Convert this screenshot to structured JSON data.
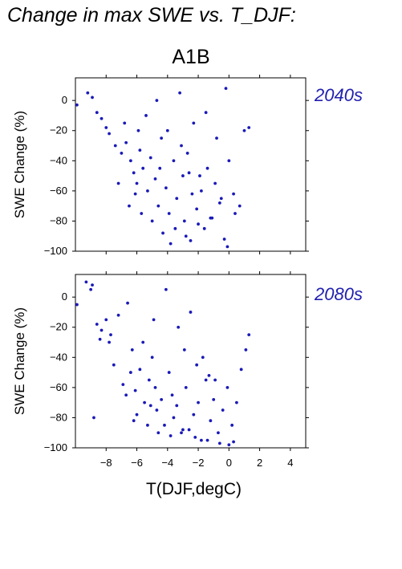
{
  "page": {
    "title": "Change in max SWE vs. T_DJF:",
    "scenario": "A1B"
  },
  "colors": {
    "points": "#1a1ab8",
    "period_label": "#2020b0",
    "axes": "#000000"
  },
  "chart_data": [
    {
      "type": "scatter",
      "period_label": "2040s",
      "ylabel": "SWE Change (%)",
      "xlabel": "",
      "xlim": [
        -10,
        5
      ],
      "ylim": [
        -100,
        15
      ],
      "xticks": [
        -8,
        -6,
        -4,
        -2,
        0,
        2,
        4
      ],
      "yticks": [
        0,
        -20,
        -40,
        -60,
        -80,
        -100
      ],
      "ytick_labels": [
        "0",
        "−20",
        "−40",
        "−60",
        "−80",
        "−100"
      ],
      "x": [
        -9.9,
        -9.2,
        -8.9,
        -8.6,
        -8.3,
        -8.0,
        -7.8,
        -7.4,
        -7.0,
        -6.7,
        -6.4,
        -6.2,
        -6.0,
        -5.8,
        -5.6,
        -5.3,
        -5.1,
        -4.8,
        -4.6,
        -4.4,
        -4.1,
        -3.9,
        -3.6,
        -3.4,
        -3.1,
        -2.9,
        -2.6,
        -2.4,
        -2.1,
        -1.9,
        -1.6,
        -1.4,
        -1.1,
        -0.9,
        -0.6,
        -0.3,
        0.0,
        0.3,
        0.7,
        1.0,
        1.3,
        -7.2,
        -6.5,
        -5.7,
        -5.0,
        -4.3,
        -3.5,
        -2.8,
        -2.0,
        -1.2,
        -0.5,
        -6.8,
        -5.4,
        -4.0,
        -2.7,
        -1.5,
        -0.2,
        -3.2,
        -2.3,
        -4.7,
        -5.9,
        -3.8,
        -1.8,
        -0.8,
        -2.5,
        -3.0,
        -4.5,
        -0.1,
        0.4,
        -6.1
      ],
      "y": [
        -3,
        5,
        2,
        -8,
        -12,
        -18,
        -22,
        -30,
        -35,
        -28,
        -40,
        -48,
        -55,
        -33,
        -45,
        -60,
        -38,
        -52,
        -70,
        -25,
        -58,
        -75,
        -40,
        -65,
        -30,
        -80,
        -48,
        -62,
        -72,
        -50,
        -85,
        -45,
        -78,
        -55,
        -68,
        -92,
        -40,
        -62,
        -70,
        -20,
        -18,
        -55,
        -70,
        -75,
        -80,
        -88,
        -85,
        -90,
        -82,
        -78,
        -65,
        -15,
        -10,
        -20,
        -35,
        -8,
        8,
        5,
        -15,
        0,
        -20,
        -95,
        -60,
        -25,
        -93,
        -50,
        -45,
        -97,
        -75,
        -62
      ]
    },
    {
      "type": "scatter",
      "period_label": "2080s",
      "ylabel": "SWE Change (%)",
      "xlabel": "T(DJF,degC)",
      "xlim": [
        -10,
        5
      ],
      "ylim": [
        -100,
        15
      ],
      "xticks": [
        -8,
        -6,
        -4,
        -2,
        0,
        2,
        4
      ],
      "xtick_labels": [
        "−8",
        "−6",
        "−4",
        "−2",
        "0",
        "2",
        "4"
      ],
      "yticks": [
        0,
        -20,
        -40,
        -60,
        -80,
        -100
      ],
      "ytick_labels": [
        "0",
        "−20",
        "−40",
        "−60",
        "−80",
        "−100"
      ],
      "x": [
        -9.9,
        -9.3,
        -8.9,
        -8.6,
        -8.3,
        -8.0,
        -7.8,
        -7.5,
        -7.2,
        -6.9,
        -6.6,
        -6.3,
        -6.1,
        -5.8,
        -5.5,
        -5.2,
        -5.0,
        -4.7,
        -4.4,
        -4.2,
        -3.9,
        -3.6,
        -3.4,
        -3.1,
        -2.8,
        -2.6,
        -2.3,
        -2.0,
        -1.8,
        -1.5,
        -1.2,
        -1.0,
        -0.7,
        -0.4,
        -0.1,
        0.2,
        0.5,
        0.8,
        1.1,
        1.3,
        -6.7,
        -6.0,
        -5.3,
        -4.6,
        -3.8,
        -3.0,
        -2.2,
        -1.4,
        -0.6,
        0.0,
        -8.8,
        -7.7,
        -6.4,
        -5.6,
        -4.9,
        -4.1,
        -3.3,
        -2.5,
        -1.7,
        -0.9,
        -9.0,
        -4.8,
        -2.9,
        -2.1,
        -1.3,
        0.3,
        -3.7,
        -5.1,
        -6.2,
        -8.4
      ],
      "y": [
        -5,
        10,
        8,
        -18,
        -22,
        -15,
        -30,
        -45,
        -12,
        -58,
        -4,
        -35,
        -62,
        -48,
        -70,
        -55,
        -40,
        -75,
        -68,
        -85,
        -50,
        -80,
        -72,
        -90,
        -60,
        -88,
        -78,
        -70,
        -95,
        -55,
        -82,
        -68,
        -90,
        -75,
        -60,
        -85,
        -70,
        -48,
        -35,
        -25,
        -65,
        -78,
        -85,
        -90,
        -92,
        -88,
        -93,
        -95,
        -97,
        -98,
        -80,
        -25,
        -50,
        -30,
        -15,
        5,
        -20,
        -10,
        -40,
        -55,
        5,
        -60,
        -35,
        -45,
        -52,
        -96,
        -65,
        -72,
        -82,
        -28
      ]
    }
  ]
}
